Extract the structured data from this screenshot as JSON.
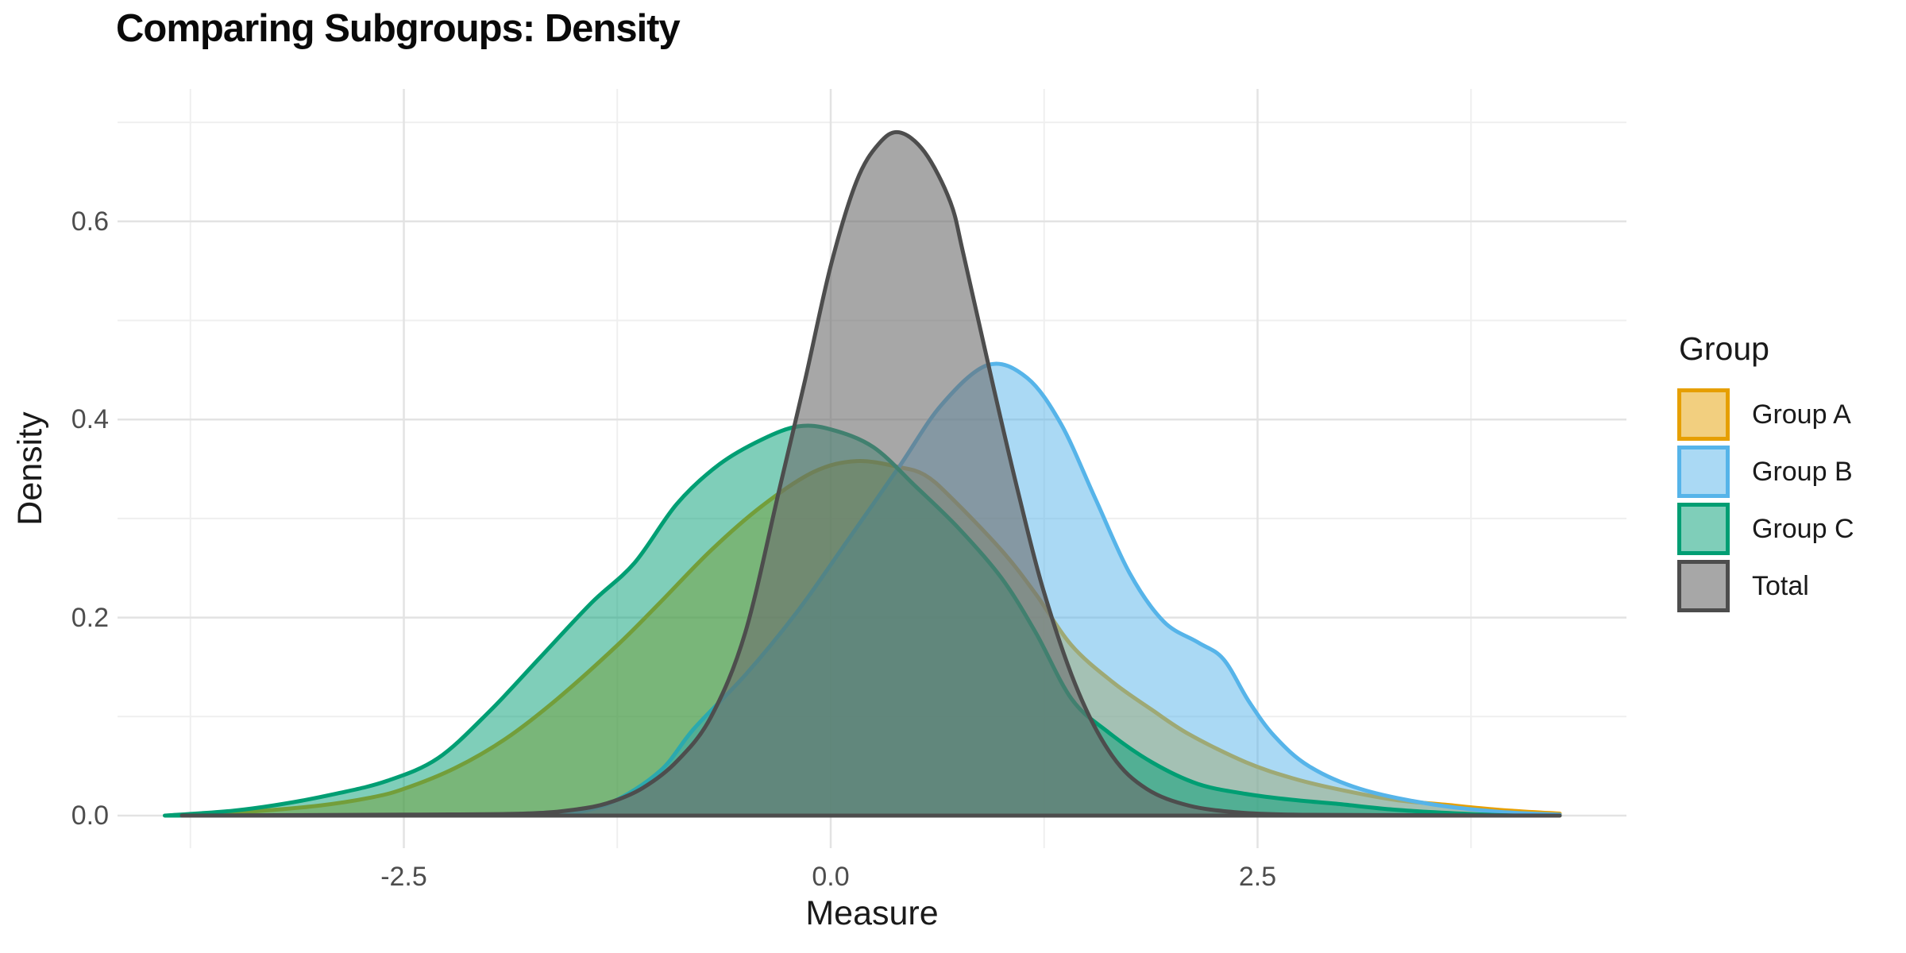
{
  "title": "Comparing Subgroups: Density",
  "legend": {
    "title": "Group"
  },
  "chart_data": {
    "type": "area",
    "subtype": "density",
    "title": "Comparing Subgroups: Density",
    "xlabel": "Measure",
    "ylabel": "Density",
    "x_ticks": [
      {
        "label": "-2.5",
        "value": -2.5
      },
      {
        "label": "0.0",
        "value": 0.0
      },
      {
        "label": "2.5",
        "value": 2.5
      }
    ],
    "y_ticks": [
      {
        "label": "0.0",
        "value": 0.0
      },
      {
        "label": "0.2",
        "value": 0.2
      },
      {
        "label": "0.4",
        "value": 0.4
      },
      {
        "label": "0.6",
        "value": 0.6
      }
    ],
    "x_minor": [
      -3.75,
      -1.25,
      1.25,
      3.75
    ],
    "y_minor": [
      0.1,
      0.3,
      0.5,
      0.7
    ],
    "xlim": [
      -4.18,
      4.66
    ],
    "ylim": [
      -0.034,
      0.735
    ],
    "grid": "on",
    "legend_position": "right",
    "colors": {
      "major_grid": "#e3e3e3",
      "minor_grid": "#efefef",
      "tick_text": "#4d4d4d",
      "title_text": "#0a0a0a"
    },
    "series": [
      {
        "name": "Group A",
        "stroke": "#E69F00",
        "fill": "rgba(230,159,0,0.5)",
        "points": [
          [
            -3.8,
            0
          ],
          [
            -3.4,
            0.004
          ],
          [
            -3.0,
            0.01
          ],
          [
            -2.7,
            0.018
          ],
          [
            -2.5,
            0.027
          ],
          [
            -2.2,
            0.048
          ],
          [
            -1.9,
            0.078
          ],
          [
            -1.6,
            0.118
          ],
          [
            -1.25,
            0.172
          ],
          [
            -1.0,
            0.215
          ],
          [
            -0.7,
            0.268
          ],
          [
            -0.4,
            0.313
          ],
          [
            -0.1,
            0.347
          ],
          [
            0.15,
            0.358
          ],
          [
            0.4,
            0.352
          ],
          [
            0.55,
            0.344
          ],
          [
            0.7,
            0.322
          ],
          [
            1.0,
            0.268
          ],
          [
            1.2,
            0.224
          ],
          [
            1.41,
            0.172
          ],
          [
            1.65,
            0.135
          ],
          [
            1.88,
            0.107
          ],
          [
            2.1,
            0.082
          ],
          [
            2.43,
            0.054
          ],
          [
            2.7,
            0.038
          ],
          [
            2.96,
            0.027
          ],
          [
            3.3,
            0.016
          ],
          [
            3.6,
            0.011
          ],
          [
            3.9,
            0.006
          ],
          [
            4.27,
            0.002
          ]
        ]
      },
      {
        "name": "Group B",
        "stroke": "#56B4E9",
        "fill": "rgba(86,180,233,0.5)",
        "points": [
          [
            -1.6,
            0
          ],
          [
            -1.3,
            0.012
          ],
          [
            -1.0,
            0.045
          ],
          [
            -0.8,
            0.088
          ],
          [
            -0.5,
            0.142
          ],
          [
            -0.2,
            0.205
          ],
          [
            0.1,
            0.278
          ],
          [
            0.4,
            0.352
          ],
          [
            0.65,
            0.415
          ],
          [
            0.92,
            0.455
          ],
          [
            1.15,
            0.442
          ],
          [
            1.35,
            0.395
          ],
          [
            1.55,
            0.32
          ],
          [
            1.75,
            0.245
          ],
          [
            1.95,
            0.196
          ],
          [
            2.15,
            0.175
          ],
          [
            2.3,
            0.158
          ],
          [
            2.45,
            0.115
          ],
          [
            2.6,
            0.08
          ],
          [
            2.8,
            0.05
          ],
          [
            3.1,
            0.027
          ],
          [
            3.5,
            0.012
          ],
          [
            3.9,
            0.004
          ],
          [
            4.27,
            0.001
          ]
        ]
      },
      {
        "name": "Group C",
        "stroke": "#009E73",
        "fill": "rgba(0,158,115,0.5)",
        "points": [
          [
            -3.9,
            0
          ],
          [
            -3.5,
            0.005
          ],
          [
            -3.2,
            0.012
          ],
          [
            -2.9,
            0.022
          ],
          [
            -2.6,
            0.035
          ],
          [
            -2.3,
            0.058
          ],
          [
            -2.0,
            0.105
          ],
          [
            -1.7,
            0.16
          ],
          [
            -1.4,
            0.215
          ],
          [
            -1.15,
            0.255
          ],
          [
            -0.9,
            0.315
          ],
          [
            -0.65,
            0.355
          ],
          [
            -0.4,
            0.38
          ],
          [
            -0.19,
            0.393
          ],
          [
            0.0,
            0.39
          ],
          [
            0.25,
            0.372
          ],
          [
            0.5,
            0.332
          ],
          [
            0.75,
            0.29
          ],
          [
            1.0,
            0.24
          ],
          [
            1.2,
            0.185
          ],
          [
            1.41,
            0.118
          ],
          [
            1.62,
            0.085
          ],
          [
            1.88,
            0.054
          ],
          [
            2.15,
            0.032
          ],
          [
            2.43,
            0.022
          ],
          [
            2.7,
            0.016
          ],
          [
            2.96,
            0.012
          ],
          [
            3.3,
            0.006
          ],
          [
            3.7,
            0.002
          ],
          [
            4.0,
            0
          ]
        ]
      },
      {
        "name": "Total",
        "stroke": "#4D4D4D",
        "fill": "rgba(109,109,109,0.6)",
        "points": [
          [
            -3.8,
            0
          ],
          [
            -2.5,
            0.001
          ],
          [
            -1.8,
            0.002
          ],
          [
            -1.5,
            0.006
          ],
          [
            -1.3,
            0.013
          ],
          [
            -1.1,
            0.028
          ],
          [
            -0.9,
            0.055
          ],
          [
            -0.7,
            0.1
          ],
          [
            -0.5,
            0.185
          ],
          [
            -0.3,
            0.33
          ],
          [
            -0.15,
            0.44
          ],
          [
            0.0,
            0.555
          ],
          [
            0.15,
            0.64
          ],
          [
            0.28,
            0.678
          ],
          [
            0.4,
            0.69
          ],
          [
            0.55,
            0.67
          ],
          [
            0.7,
            0.62
          ],
          [
            0.78,
            0.565
          ],
          [
            0.95,
            0.435
          ],
          [
            1.1,
            0.325
          ],
          [
            1.25,
            0.225
          ],
          [
            1.45,
            0.125
          ],
          [
            1.65,
            0.06
          ],
          [
            1.85,
            0.027
          ],
          [
            2.1,
            0.01
          ],
          [
            2.4,
            0.003
          ],
          [
            2.7,
            0.001
          ],
          [
            3.2,
            0.0005
          ],
          [
            4.27,
            0
          ]
        ]
      }
    ]
  }
}
